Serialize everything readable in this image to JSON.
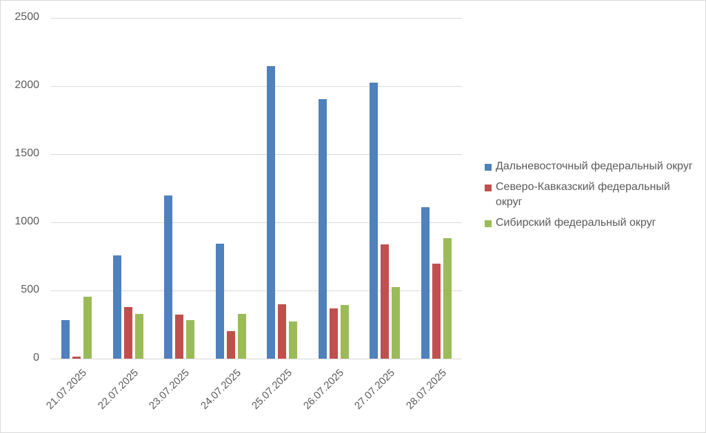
{
  "chart_data": {
    "type": "bar",
    "title": "",
    "xlabel": "",
    "ylabel": "",
    "ylim": [
      0,
      2500
    ],
    "yticks": [
      "0",
      "500",
      "1000",
      "1500",
      "2000",
      "2500"
    ],
    "grid": true,
    "legend_position": "right",
    "categories": [
      "21.07.2025",
      "22.07.2025",
      "23.07.2025",
      "24.07.2025",
      "25.07.2025",
      "26.07.2025",
      "27.07.2025",
      "28.07.2025"
    ],
    "series": [
      {
        "name": "Дальневосточный федеральный округ",
        "color": "#4f81bd",
        "values": [
          283,
          760,
          1198,
          845,
          2147,
          1905,
          2026,
          1111
        ]
      },
      {
        "name": "Северо-Кавказский федеральный округ",
        "color": "#c0504d",
        "values": [
          15,
          380,
          323,
          203,
          400,
          370,
          838,
          697
        ]
      },
      {
        "name": "Сибирский федеральный округ",
        "color": "#9bbb59",
        "values": [
          455,
          330,
          283,
          328,
          273,
          395,
          525,
          884
        ]
      }
    ]
  },
  "legend": {
    "items": [
      {
        "label": "Дальневосточный федеральный округ"
      },
      {
        "label": "Северо-Кавказский федеральный округ"
      },
      {
        "label": "Сибирский федеральный округ"
      }
    ]
  }
}
